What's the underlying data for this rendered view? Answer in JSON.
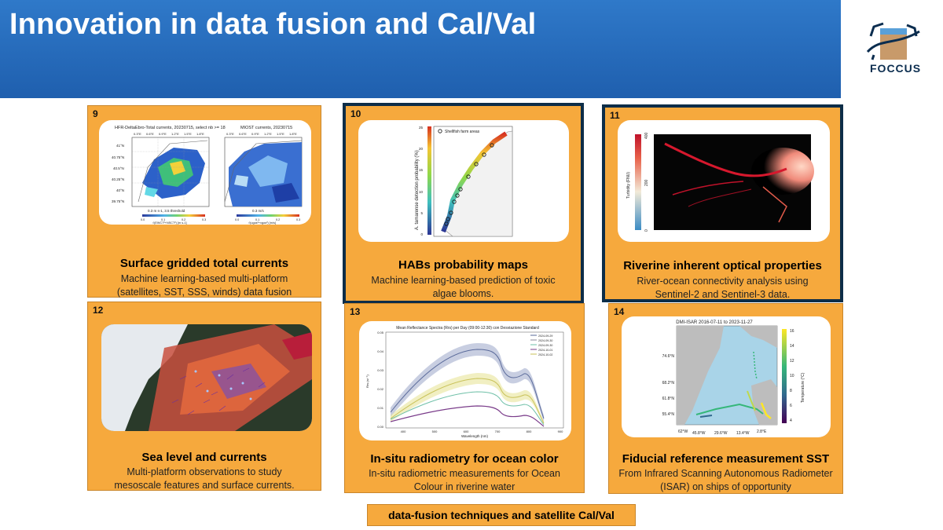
{
  "header": {
    "title": "Innovation in data fusion and Cal/Val"
  },
  "logo": {
    "text": "FOCCUS"
  },
  "cards": [
    {
      "number": "9",
      "title": "Surface gridded total currents",
      "desc1": "Machine learning-based multi-platform",
      "desc2": "(satellites, SST, SSS, winds) data fusion",
      "fig": {
        "left_title": "HFR-DeltaEbro-Total currents, 20230715, select nb >= 18",
        "right_title": "MIOST currents, 20230715",
        "lon_ticks": [
          "0.3°E",
          "0.6°E",
          "0.9°E",
          "1.2°E",
          "1.5°E",
          "1.8°E"
        ],
        "lat_ticks": [
          "41°N",
          "40.75°N",
          "40.5°N",
          "40.25°N",
          "40°N",
          "39.75°N"
        ],
        "left_legend": "0.3 m s-1, 3.5 threshold",
        "right_legend": "0.3 m/s",
        "cbar_ticks": [
          "0.0",
          "0.1",
          "0.2",
          "0.3"
        ],
        "left_cbar_label": "√(EWCT²+NSCT²) [m s-1]",
        "right_cbar_label": "√(ugos²+vgos²) [m/s]"
      }
    },
    {
      "number": "10",
      "title": "HABs probability maps",
      "desc1": "Machine learning-based prediction of toxic",
      "desc2": "algae blooms.",
      "fig": {
        "ylabel": "A. tamarense detection probability (%)",
        "legend": "Shellfish farm areas",
        "ticks": [
          "25",
          "20",
          "15",
          "10",
          "5",
          "0"
        ]
      }
    },
    {
      "number": "11",
      "title": "Riverine inherent optical properties",
      "desc1": "River-ocean connectivity analysis using",
      "desc2": "Sentinel-2 and Sentinel-3 data.",
      "fig": {
        "cbar_label": "Turbidity (FNU)",
        "ticks": [
          "400",
          "200",
          "0"
        ]
      }
    },
    {
      "number": "12",
      "title": "Sea level and currents",
      "desc1": "Multi-platform observations to study",
      "desc2": "mesoscale features and surface currents."
    },
    {
      "number": "13",
      "title": "In-situ radiometry for ocean color",
      "desc1": "In-situ radiometric measurements for Ocean",
      "desc2": "Colour in riverine water",
      "fig": {
        "title": "Mean Reflectance Spectra (Rrs) per Day (09:00-12:30) con Desviazione Standard",
        "ylabel": "Rrs (sr⁻¹)",
        "xlabel": "Wavelength (nm)",
        "x_ticks": [
          "400",
          "500",
          "600",
          "700",
          "800",
          "900"
        ],
        "y_ticks": [
          "0.05",
          "0.04",
          "0.03",
          "0.02",
          "0.01",
          "0.00"
        ],
        "legend": [
          "2024-09-29",
          "2024-09-30",
          "2024-09-30",
          "2024-10-01",
          "2024-10-02"
        ]
      }
    },
    {
      "number": "14",
      "title": "Fiducial reference measurement SST",
      "desc1": "From Infrared Scanning Autonomous Radiometer",
      "desc2": "(ISAR) on ships of opportunity",
      "fig": {
        "title": "DMI-ISAR 2016-07-11 to 2023-11-27",
        "lat_ticks": [
          "74.6°N",
          "68.2°N",
          "61.8°N",
          "55.4°N"
        ],
        "lon_ticks": [
          "62°W",
          "45.8°W",
          "29.6°W",
          "13.4°W",
          "2.8°E"
        ],
        "cbar_ticks": [
          "16",
          "14",
          "12",
          "10",
          "8",
          "6",
          "4"
        ],
        "cbar_label": "Temperature (°C)"
      }
    }
  ],
  "footer": {
    "label": "data-fusion techniques and satellite Cal/Val"
  },
  "colors": {
    "header_blue": "#2a6fc0",
    "card_orange": "#f6a93d",
    "selected_border": "#0d2d48"
  }
}
